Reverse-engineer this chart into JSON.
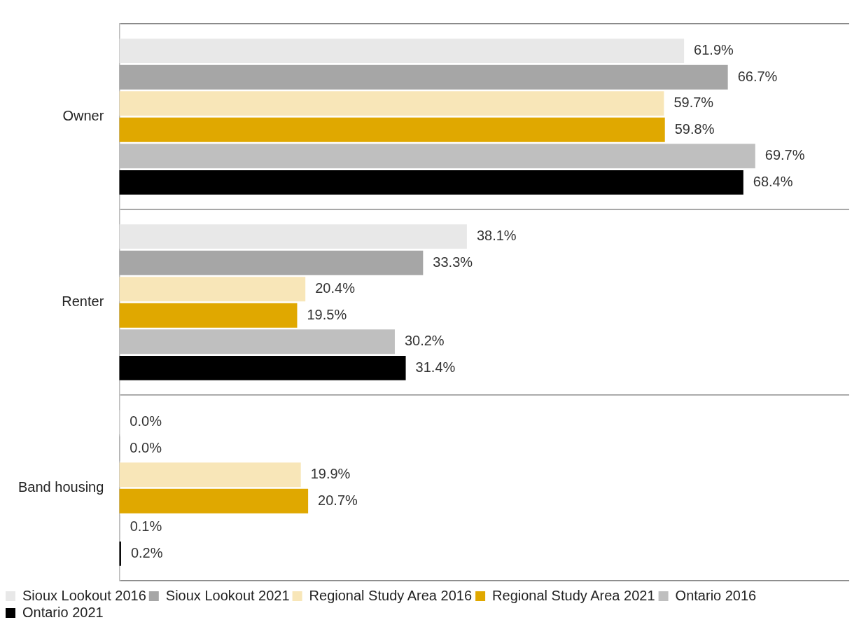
{
  "chart_data": {
    "type": "bar",
    "orientation": "horizontal",
    "categories": [
      "Owner",
      "Renter",
      "Band housing"
    ],
    "series": [
      {
        "name": "Sioux Lookout 2016",
        "color": "#e8e8e8",
        "values": [
          61.9,
          38.1,
          0.0
        ],
        "value_labels": [
          "61.9%",
          "38.1%",
          "0.0%"
        ]
      },
      {
        "name": "Sioux Lookout 2021",
        "color": "#a6a6a6",
        "values": [
          66.7,
          33.3,
          0.0
        ],
        "value_labels": [
          "66.7%",
          "33.3%",
          "0.0%"
        ]
      },
      {
        "name": "Regional Study Area 2016",
        "color": "#f8e6b8",
        "values": [
          59.7,
          20.4,
          19.9
        ],
        "value_labels": [
          "59.7%",
          "20.4%",
          "19.9%"
        ]
      },
      {
        "name": "Regional Study Area 2021",
        "color": "#e0a800",
        "values": [
          59.8,
          19.5,
          20.7
        ],
        "value_labels": [
          "59.8%",
          "19.5%",
          "20.7%"
        ]
      },
      {
        "name": "Ontario 2016",
        "color": "#bfbfbf",
        "values": [
          69.7,
          30.2,
          0.1
        ],
        "value_labels": [
          "69.7%",
          "30.2%",
          "0.1%"
        ]
      },
      {
        "name": "Ontario 2021",
        "color": "#000000",
        "values": [
          68.4,
          31.4,
          0.2
        ],
        "value_labels": [
          "68.4%",
          "31.4%",
          "0.2%"
        ]
      }
    ],
    "xlim": [
      0,
      80
    ],
    "grid": "y",
    "legend": "bottom",
    "tick_labels": "y"
  }
}
